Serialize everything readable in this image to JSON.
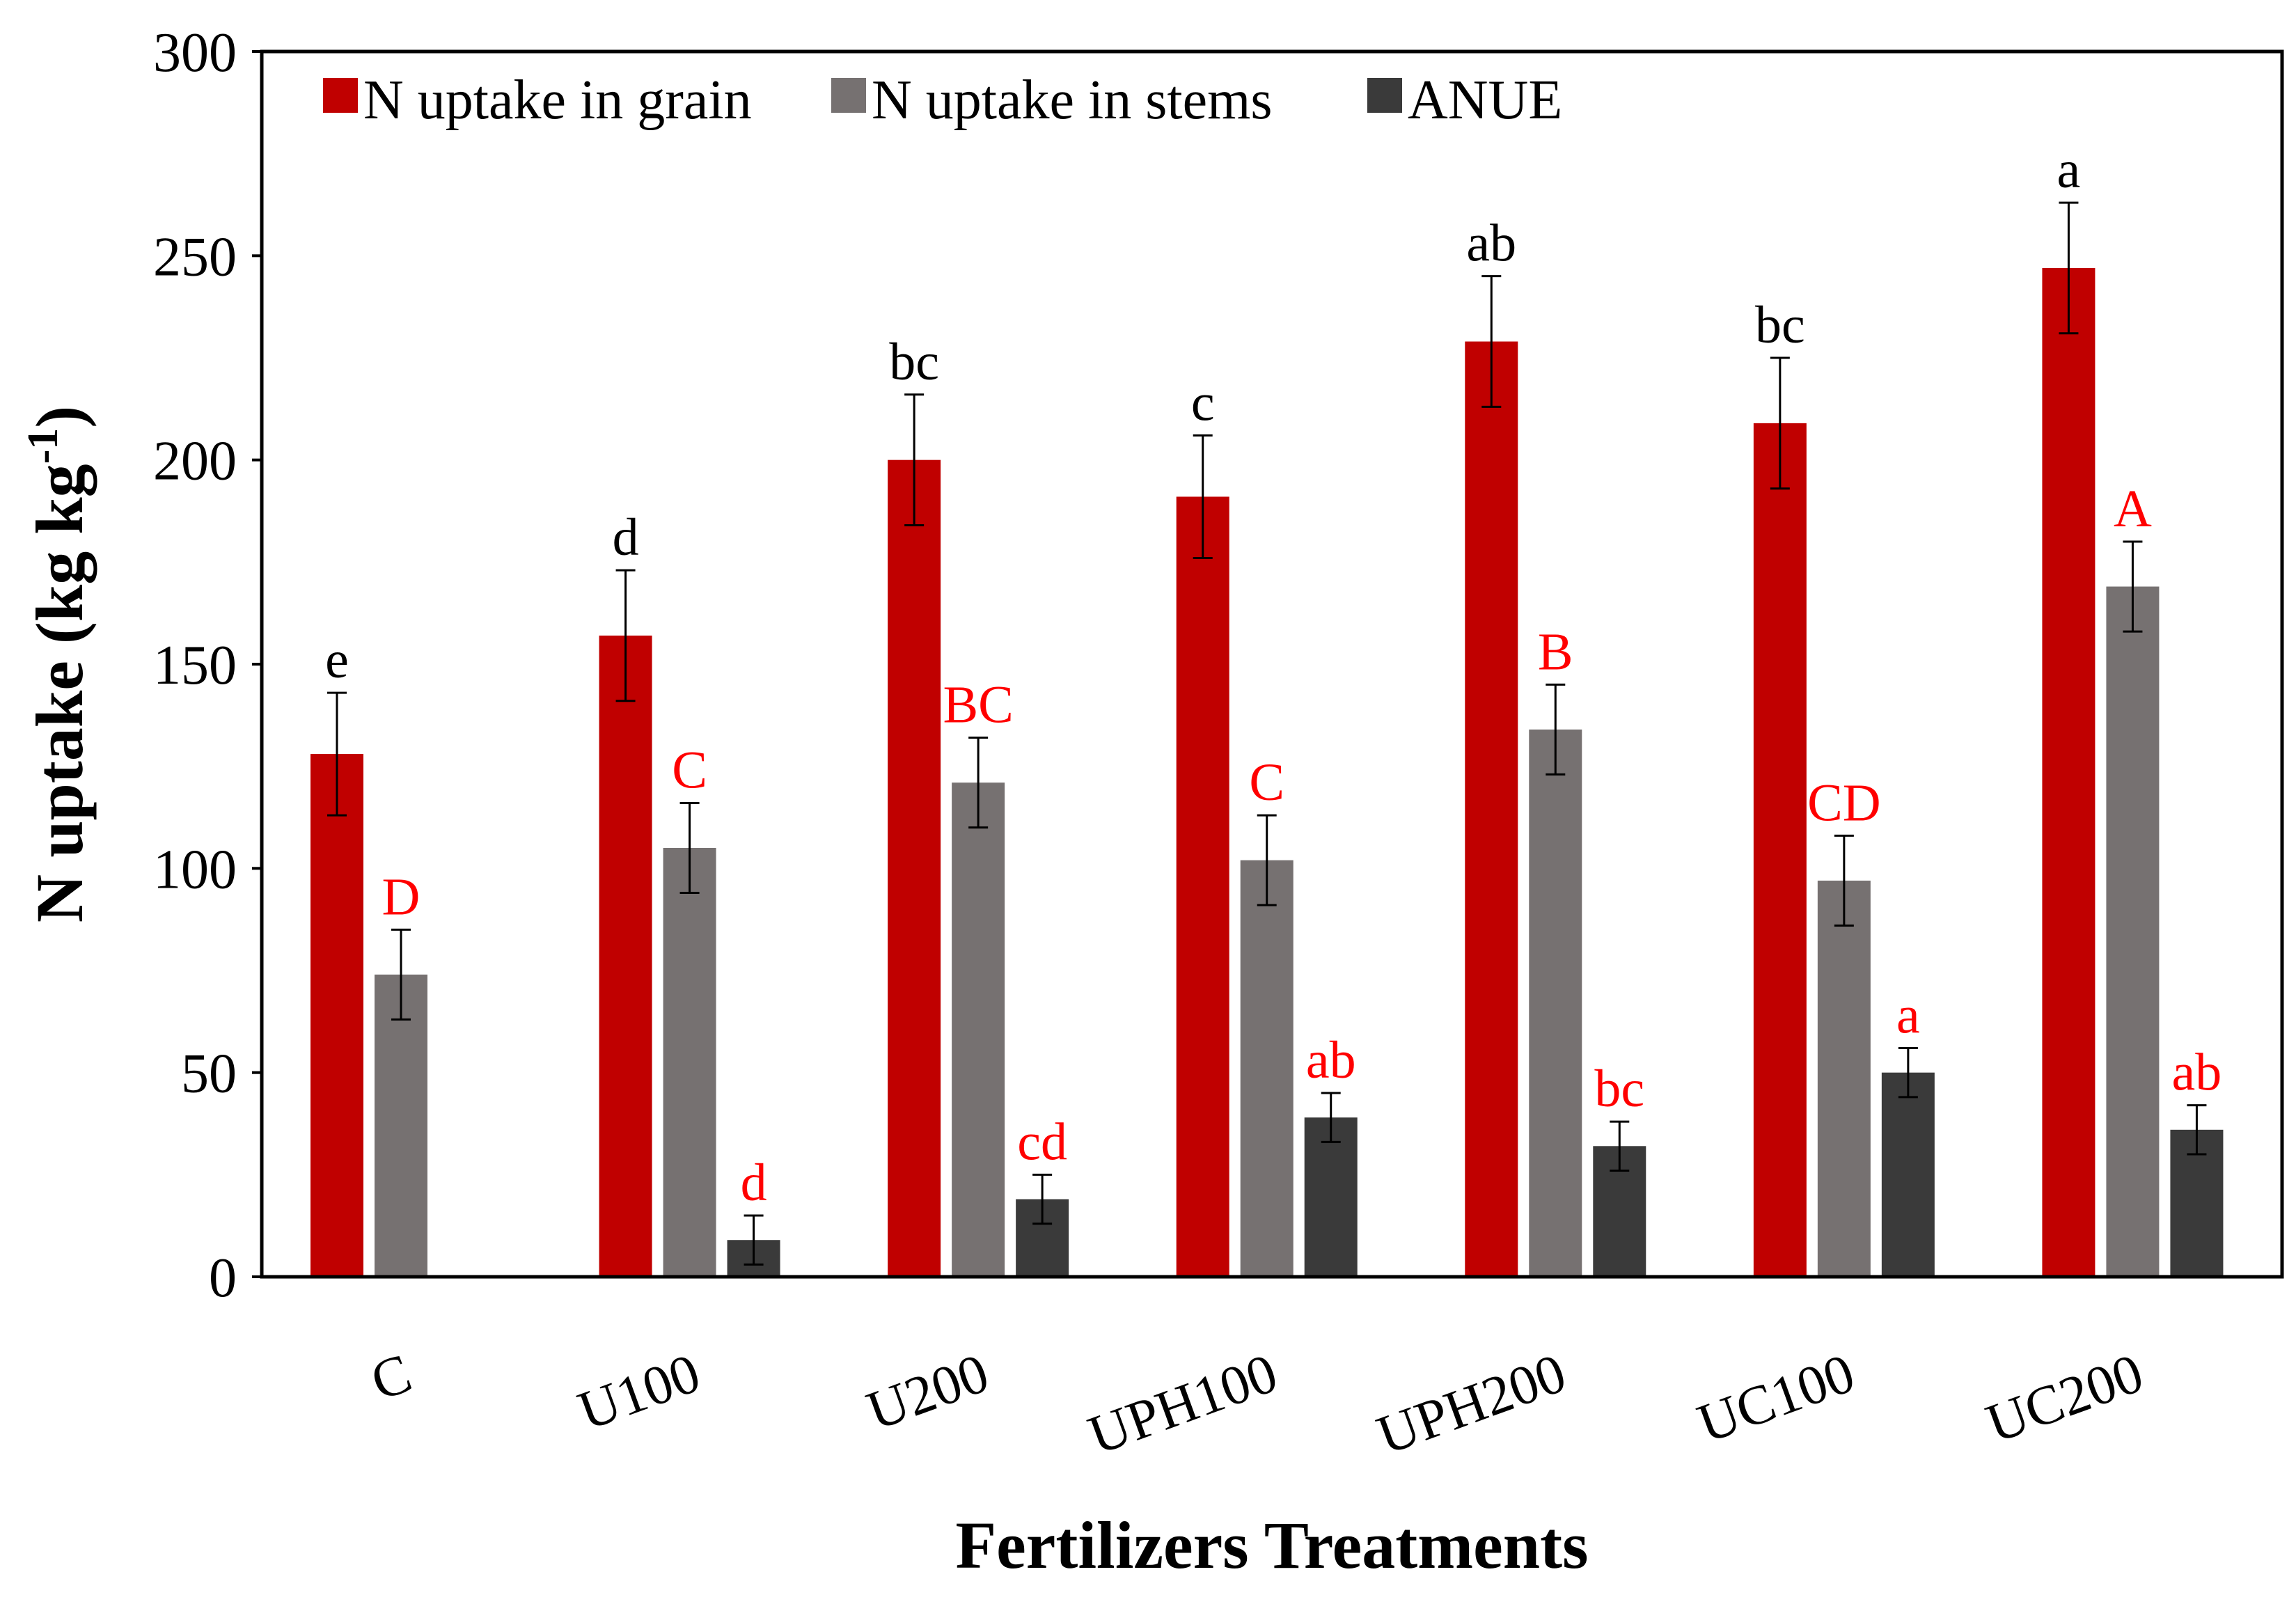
{
  "chart_data": {
    "type": "bar",
    "title": "",
    "xlabel": "Fertilizers Treatments",
    "ylabel": "N uptake (kg kg",
    "ylabel_superscript": "-1",
    "ylabel_close": ")",
    "ylim": [
      0,
      300
    ],
    "yticks": [
      0,
      50,
      100,
      150,
      200,
      250,
      300
    ],
    "categories": [
      "C",
      "U100",
      "U200",
      "UPH100",
      "UPH200",
      "UC100",
      "UC200"
    ],
    "legend_position": "top-left",
    "series": [
      {
        "name": "N uptake in grain",
        "color": "#c00000",
        "label_color": "#000000",
        "values": [
          128,
          157,
          200,
          191,
          229,
          209,
          247
        ],
        "errors": [
          15,
          16,
          16,
          15,
          16,
          16,
          16
        ],
        "labels": [
          "e",
          "d",
          "bc",
          "c",
          "ab",
          "bc",
          "a"
        ]
      },
      {
        "name": "N uptake in stems",
        "color": "#767171",
        "label_color": "#ff0000",
        "values": [
          74,
          105,
          121,
          102,
          134,
          97,
          169
        ],
        "errors": [
          11,
          11,
          11,
          11,
          11,
          11,
          11
        ],
        "labels": [
          "D",
          "C",
          "BC",
          "C",
          "B",
          "CD",
          "A"
        ]
      },
      {
        "name": "ANUE",
        "color": "#3a3a3a",
        "label_color": "#ff0000",
        "values": [
          null,
          9,
          19,
          39,
          32,
          50,
          36
        ],
        "errors": [
          null,
          6,
          6,
          6,
          6,
          6,
          6
        ],
        "labels": [
          "",
          "d",
          "cd",
          "ab",
          "bc",
          "a",
          "ab"
        ]
      }
    ]
  }
}
